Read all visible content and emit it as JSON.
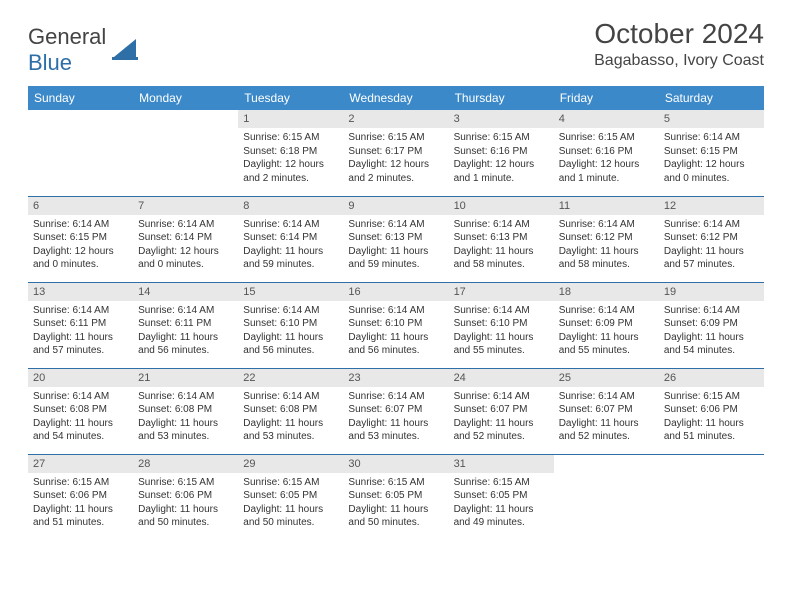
{
  "brand": {
    "word1": "General",
    "word2": "Blue"
  },
  "title": "October 2024",
  "subtitle": "Bagabasso, Ivory Coast",
  "colors": {
    "header_bg": "#3b89c9",
    "header_text": "#ffffff",
    "daynum_bg": "#e8e8e8",
    "rule": "#2f6fa7",
    "brand_blue": "#2f6fa7"
  },
  "weekdays": [
    "Sunday",
    "Monday",
    "Tuesday",
    "Wednesday",
    "Thursday",
    "Friday",
    "Saturday"
  ],
  "weeks": [
    [
      {
        "n": "",
        "sr": "",
        "ss": "",
        "dl": ""
      },
      {
        "n": "",
        "sr": "",
        "ss": "",
        "dl": ""
      },
      {
        "n": "1",
        "sr": "Sunrise: 6:15 AM",
        "ss": "Sunset: 6:18 PM",
        "dl": "Daylight: 12 hours and 2 minutes."
      },
      {
        "n": "2",
        "sr": "Sunrise: 6:15 AM",
        "ss": "Sunset: 6:17 PM",
        "dl": "Daylight: 12 hours and 2 minutes."
      },
      {
        "n": "3",
        "sr": "Sunrise: 6:15 AM",
        "ss": "Sunset: 6:16 PM",
        "dl": "Daylight: 12 hours and 1 minute."
      },
      {
        "n": "4",
        "sr": "Sunrise: 6:15 AM",
        "ss": "Sunset: 6:16 PM",
        "dl": "Daylight: 12 hours and 1 minute."
      },
      {
        "n": "5",
        "sr": "Sunrise: 6:14 AM",
        "ss": "Sunset: 6:15 PM",
        "dl": "Daylight: 12 hours and 0 minutes."
      }
    ],
    [
      {
        "n": "6",
        "sr": "Sunrise: 6:14 AM",
        "ss": "Sunset: 6:15 PM",
        "dl": "Daylight: 12 hours and 0 minutes."
      },
      {
        "n": "7",
        "sr": "Sunrise: 6:14 AM",
        "ss": "Sunset: 6:14 PM",
        "dl": "Daylight: 12 hours and 0 minutes."
      },
      {
        "n": "8",
        "sr": "Sunrise: 6:14 AM",
        "ss": "Sunset: 6:14 PM",
        "dl": "Daylight: 11 hours and 59 minutes."
      },
      {
        "n": "9",
        "sr": "Sunrise: 6:14 AM",
        "ss": "Sunset: 6:13 PM",
        "dl": "Daylight: 11 hours and 59 minutes."
      },
      {
        "n": "10",
        "sr": "Sunrise: 6:14 AM",
        "ss": "Sunset: 6:13 PM",
        "dl": "Daylight: 11 hours and 58 minutes."
      },
      {
        "n": "11",
        "sr": "Sunrise: 6:14 AM",
        "ss": "Sunset: 6:12 PM",
        "dl": "Daylight: 11 hours and 58 minutes."
      },
      {
        "n": "12",
        "sr": "Sunrise: 6:14 AM",
        "ss": "Sunset: 6:12 PM",
        "dl": "Daylight: 11 hours and 57 minutes."
      }
    ],
    [
      {
        "n": "13",
        "sr": "Sunrise: 6:14 AM",
        "ss": "Sunset: 6:11 PM",
        "dl": "Daylight: 11 hours and 57 minutes."
      },
      {
        "n": "14",
        "sr": "Sunrise: 6:14 AM",
        "ss": "Sunset: 6:11 PM",
        "dl": "Daylight: 11 hours and 56 minutes."
      },
      {
        "n": "15",
        "sr": "Sunrise: 6:14 AM",
        "ss": "Sunset: 6:10 PM",
        "dl": "Daylight: 11 hours and 56 minutes."
      },
      {
        "n": "16",
        "sr": "Sunrise: 6:14 AM",
        "ss": "Sunset: 6:10 PM",
        "dl": "Daylight: 11 hours and 56 minutes."
      },
      {
        "n": "17",
        "sr": "Sunrise: 6:14 AM",
        "ss": "Sunset: 6:10 PM",
        "dl": "Daylight: 11 hours and 55 minutes."
      },
      {
        "n": "18",
        "sr": "Sunrise: 6:14 AM",
        "ss": "Sunset: 6:09 PM",
        "dl": "Daylight: 11 hours and 55 minutes."
      },
      {
        "n": "19",
        "sr": "Sunrise: 6:14 AM",
        "ss": "Sunset: 6:09 PM",
        "dl": "Daylight: 11 hours and 54 minutes."
      }
    ],
    [
      {
        "n": "20",
        "sr": "Sunrise: 6:14 AM",
        "ss": "Sunset: 6:08 PM",
        "dl": "Daylight: 11 hours and 54 minutes."
      },
      {
        "n": "21",
        "sr": "Sunrise: 6:14 AM",
        "ss": "Sunset: 6:08 PM",
        "dl": "Daylight: 11 hours and 53 minutes."
      },
      {
        "n": "22",
        "sr": "Sunrise: 6:14 AM",
        "ss": "Sunset: 6:08 PM",
        "dl": "Daylight: 11 hours and 53 minutes."
      },
      {
        "n": "23",
        "sr": "Sunrise: 6:14 AM",
        "ss": "Sunset: 6:07 PM",
        "dl": "Daylight: 11 hours and 53 minutes."
      },
      {
        "n": "24",
        "sr": "Sunrise: 6:14 AM",
        "ss": "Sunset: 6:07 PM",
        "dl": "Daylight: 11 hours and 52 minutes."
      },
      {
        "n": "25",
        "sr": "Sunrise: 6:14 AM",
        "ss": "Sunset: 6:07 PM",
        "dl": "Daylight: 11 hours and 52 minutes."
      },
      {
        "n": "26",
        "sr": "Sunrise: 6:15 AM",
        "ss": "Sunset: 6:06 PM",
        "dl": "Daylight: 11 hours and 51 minutes."
      }
    ],
    [
      {
        "n": "27",
        "sr": "Sunrise: 6:15 AM",
        "ss": "Sunset: 6:06 PM",
        "dl": "Daylight: 11 hours and 51 minutes."
      },
      {
        "n": "28",
        "sr": "Sunrise: 6:15 AM",
        "ss": "Sunset: 6:06 PM",
        "dl": "Daylight: 11 hours and 50 minutes."
      },
      {
        "n": "29",
        "sr": "Sunrise: 6:15 AM",
        "ss": "Sunset: 6:05 PM",
        "dl": "Daylight: 11 hours and 50 minutes."
      },
      {
        "n": "30",
        "sr": "Sunrise: 6:15 AM",
        "ss": "Sunset: 6:05 PM",
        "dl": "Daylight: 11 hours and 50 minutes."
      },
      {
        "n": "31",
        "sr": "Sunrise: 6:15 AM",
        "ss": "Sunset: 6:05 PM",
        "dl": "Daylight: 11 hours and 49 minutes."
      },
      {
        "n": "",
        "sr": "",
        "ss": "",
        "dl": ""
      },
      {
        "n": "",
        "sr": "",
        "ss": "",
        "dl": ""
      }
    ]
  ]
}
